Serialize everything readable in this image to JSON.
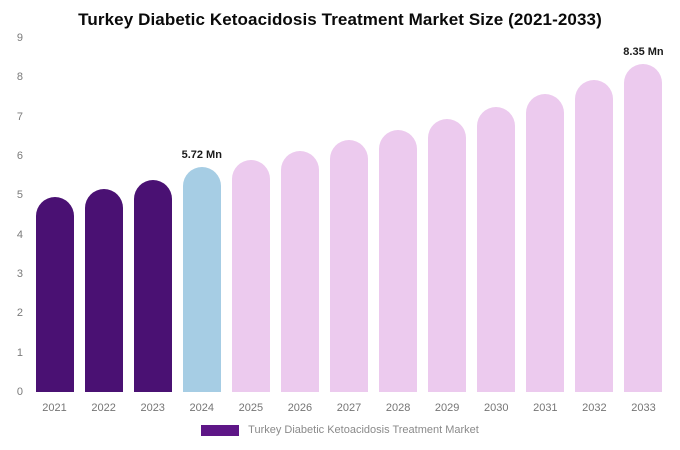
{
  "title": "Turkey Diabetic Ketoacidosis Treatment Market Size (2021-2033)",
  "legend": {
    "label": "Turkey Diabetic Ketoacidosis Treatment Market",
    "color": "#5e1687"
  },
  "colors": {
    "historical_bar": "#4a1173",
    "current_year_bar": "#a6cde4",
    "forecast_bar": "#eccaee",
    "axis_text": "#757575",
    "title_text": "#0a0a0a"
  },
  "chart_data": {
    "type": "bar",
    "title": "Turkey Diabetic Ketoacidosis Treatment Market Size (2021-2033)",
    "xlabel": "",
    "ylabel": "",
    "ylim": [
      0,
      9
    ],
    "yticks": [
      0,
      1,
      2,
      3,
      4,
      5,
      6,
      7,
      8,
      9
    ],
    "grid": false,
    "legend_position": "bottom",
    "categories": [
      "2021",
      "2022",
      "2023",
      "2024",
      "2025",
      "2026",
      "2027",
      "2028",
      "2029",
      "2030",
      "2031",
      "2032",
      "2033"
    ],
    "values": [
      4.97,
      5.17,
      5.4,
      5.72,
      5.9,
      6.13,
      6.4,
      6.67,
      6.95,
      7.25,
      7.57,
      7.92,
      8.35
    ],
    "bar_colors": [
      "#4a1173",
      "#4a1173",
      "#4a1173",
      "#a6cde4",
      "#eccaee",
      "#eccaee",
      "#eccaee",
      "#eccaee",
      "#eccaee",
      "#eccaee",
      "#eccaee",
      "#eccaee",
      "#eccaee"
    ],
    "annotations": {
      "2024": "5.72 Mn",
      "2033": "8.35 Mn"
    },
    "series_name": "Turkey Diabetic Ketoacidosis Treatment Market"
  }
}
